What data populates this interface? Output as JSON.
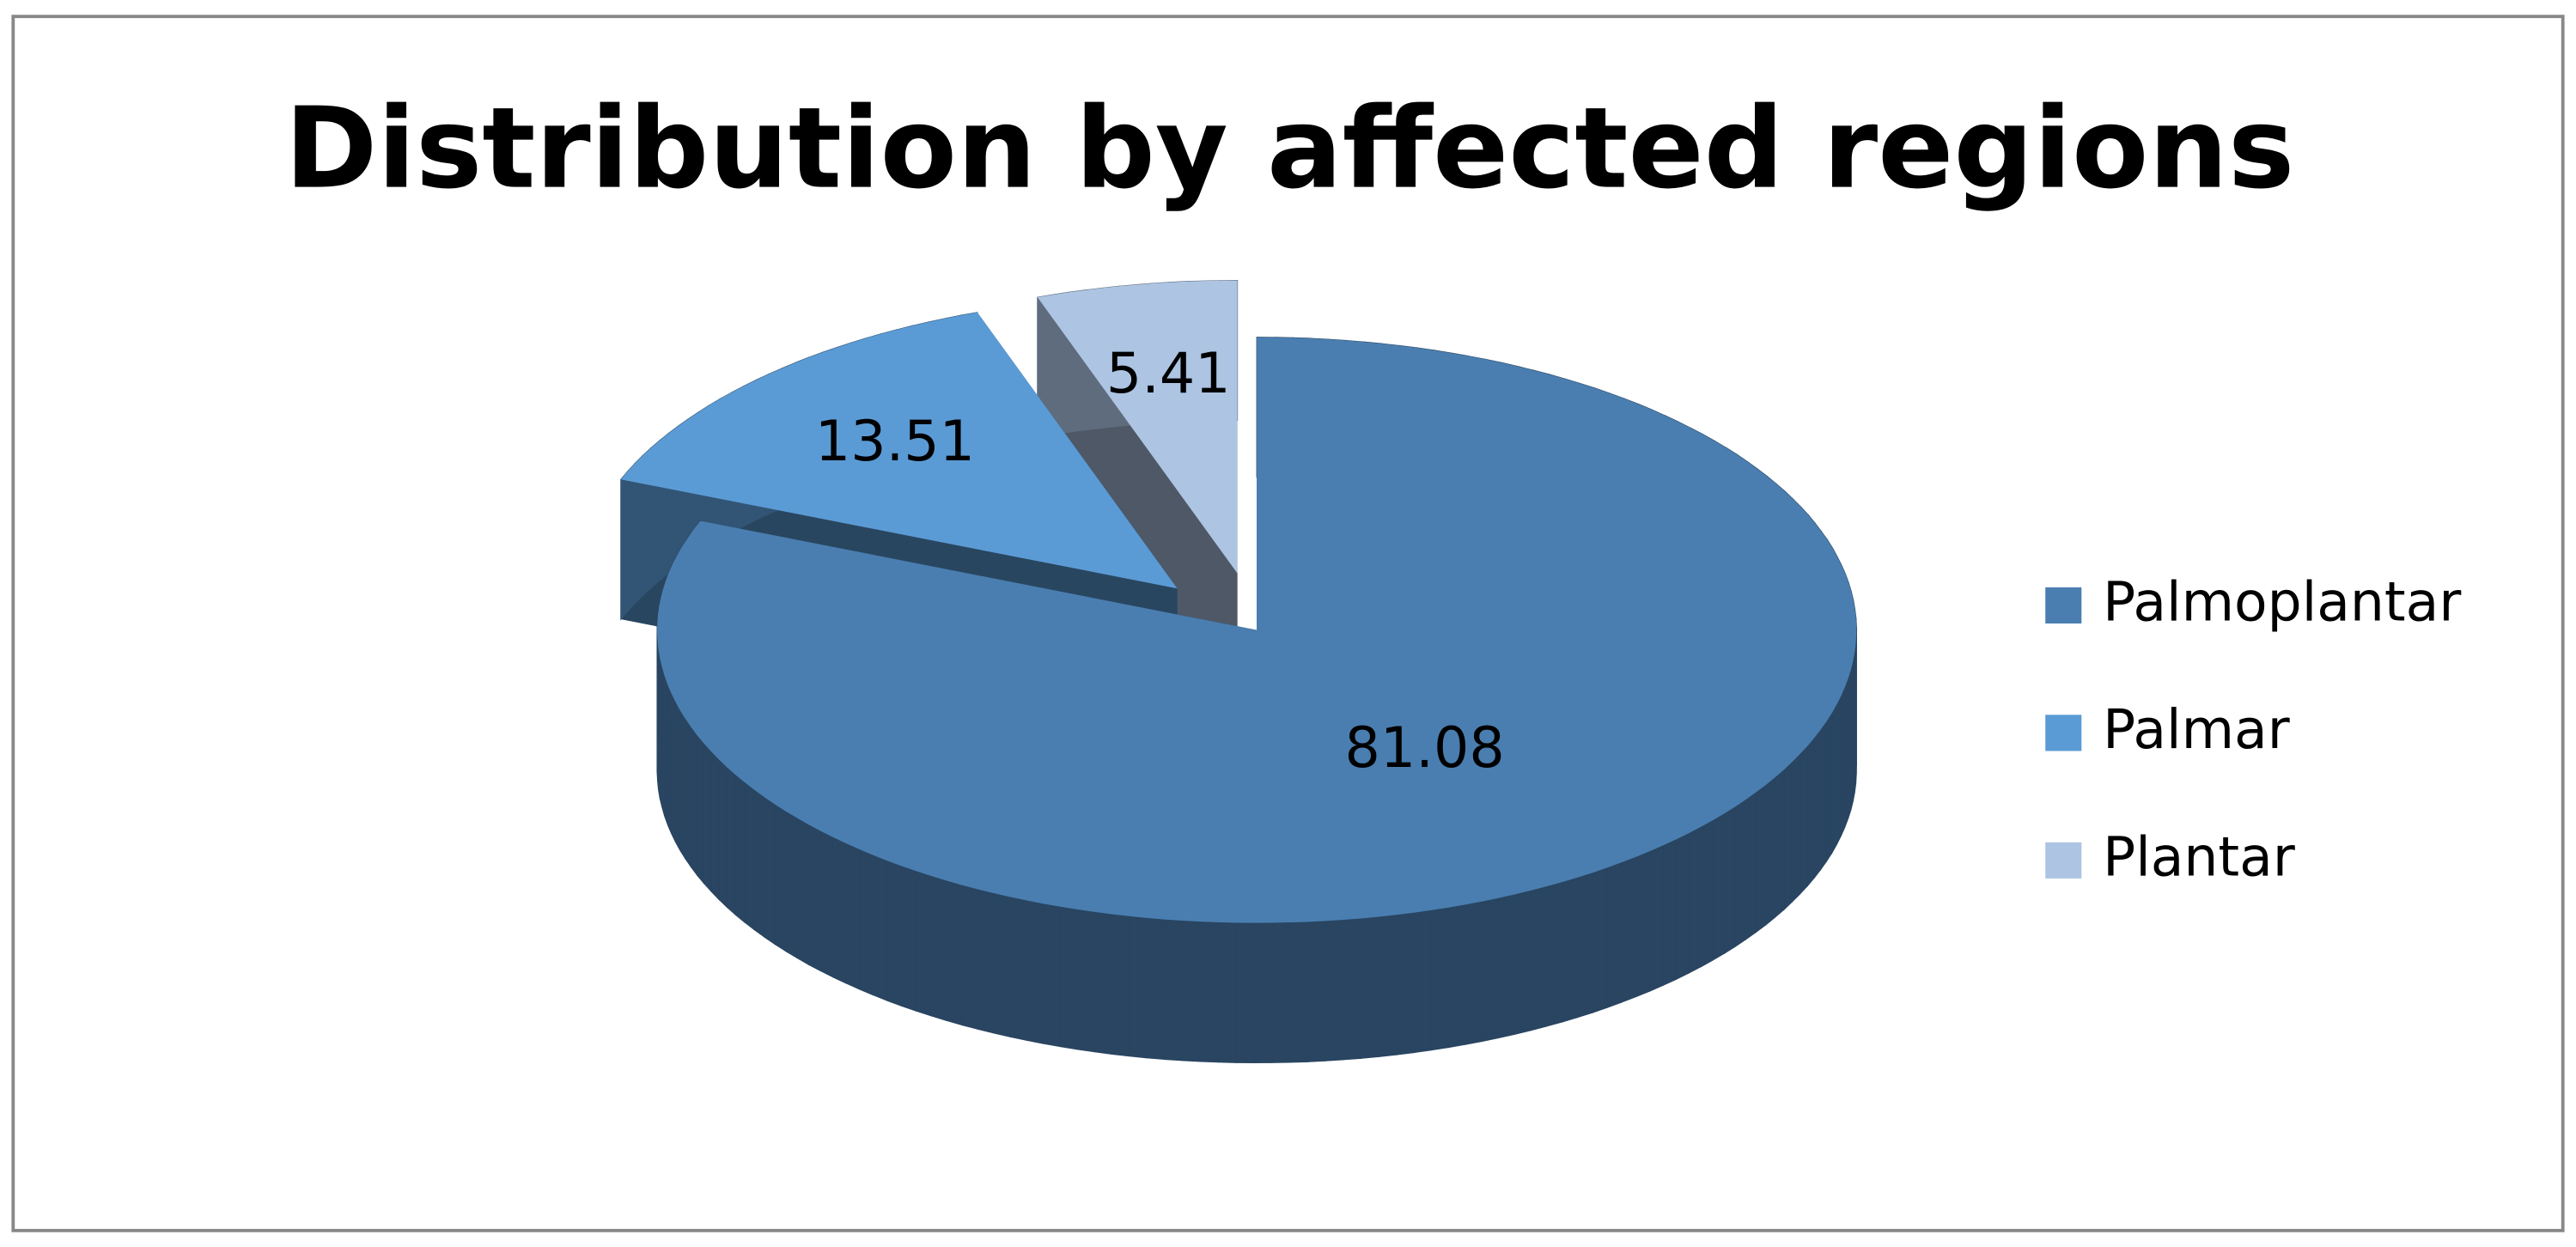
{
  "chart_data": {
    "type": "pie3d",
    "title": "Distribution by affected regions",
    "categories": [
      "Palmoplantar",
      "Palmar",
      "Plantar"
    ],
    "values": [
      81.08,
      13.51,
      5.41
    ],
    "colors": [
      "#4a7eb0",
      "#5b9bd5",
      "#adc4e3"
    ],
    "legend": "right"
  }
}
